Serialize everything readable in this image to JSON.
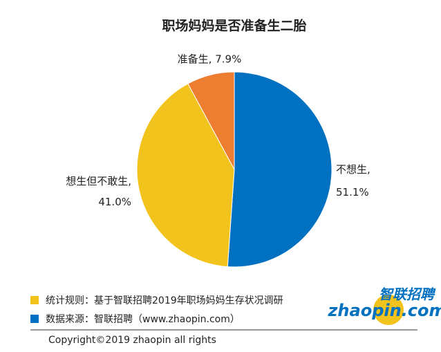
{
  "chart_data": {
    "type": "pie",
    "title": "职场妈妈是否准备生二胎",
    "labels": [
      "不想生, 51.1%",
      "想生但不敢生, 41.0%",
      "准备生, 7.9%"
    ],
    "values": [
      51.1,
      41.0,
      7.9
    ],
    "colors": [
      "#0070c0",
      "#f2c31c",
      "#ed7d31"
    ]
  },
  "footer": {
    "notes": [
      "统计规则：基于智联招聘2019年职场妈妈生存状况调研",
      "数据来源：智联招聘（www.zhaopin.com）"
    ],
    "copyright": "Copyright©2019 zhaopin all rights",
    "logo_cn": "智联招聘",
    "logo_en": "zhaopin.com"
  }
}
